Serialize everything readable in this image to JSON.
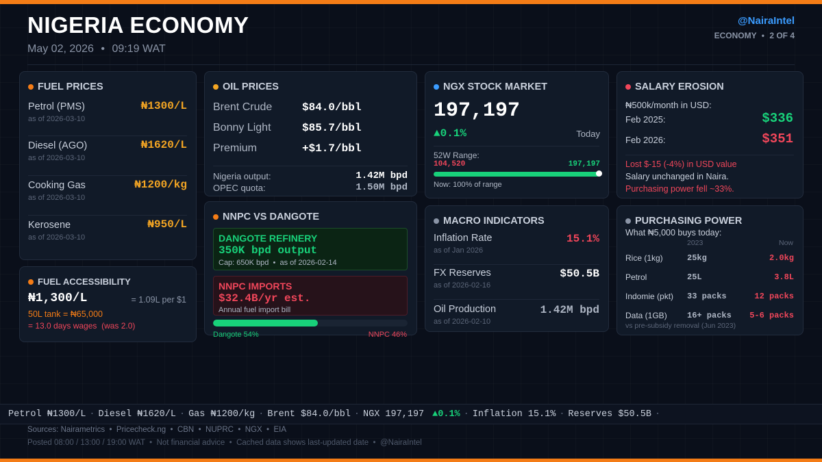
{
  "header": {
    "title": "NIGERIA ECONOMY",
    "date": "May 02, 2026",
    "time": "09:19 WAT",
    "datetime_sep": "•",
    "handle": "@NairaIntel",
    "section": "ECONOMY",
    "page": "2 OF 4"
  },
  "colors": {
    "accent_orange": "#f47c16",
    "amber": "#f5a623",
    "green": "#18d17a",
    "red": "#f0465a",
    "blue": "#3b9cff",
    "grey": "#8a94a6"
  },
  "fuel_prices": {
    "title": "FUEL PRICES",
    "items": [
      {
        "name": "Petrol (PMS)",
        "price": "₦1300/L",
        "asof": "as of 2026-03-10"
      },
      {
        "name": "Diesel (AGO)",
        "price": "₦1620/L",
        "asof": "as of 2026-03-10"
      },
      {
        "name": "Cooking Gas",
        "price": "₦1200/kg",
        "asof": "as of 2026-03-10"
      },
      {
        "name": "Kerosene",
        "price": "₦950/L",
        "asof": "as of 2026-03-10"
      }
    ]
  },
  "fuel_accessibility": {
    "title": "FUEL ACCESSIBILITY",
    "price": "₦1,300/L",
    "per_dollar": "= 1.09L per $1",
    "tank": "50L tank = ₦65,000",
    "days": "= 13.0 days wages  (was 2.0)"
  },
  "oil_prices": {
    "title": "OIL PRICES",
    "items": [
      {
        "name": "Brent Crude",
        "value": "$84.0/bbl"
      },
      {
        "name": "Bonny Light",
        "value": "$85.7/bbl"
      },
      {
        "name": "Premium",
        "value": "+$1.7/bbl"
      }
    ],
    "output_label": "Nigeria output:",
    "output_value": "1.42M bpd",
    "quota_label": "OPEC quota:",
    "quota_value": "1.50M bpd"
  },
  "nnpc_vs_dangote": {
    "title": "NNPC VS DANGOTE",
    "dangote": {
      "heading": "DANGOTE REFINERY",
      "value": "350K bpd output",
      "note": "Cap: 650K bpd  •  as of 2026-02-14"
    },
    "nnpc": {
      "heading": "NNPC IMPORTS",
      "value": "$32.4B/yr est.",
      "note": "Annual fuel import bill"
    },
    "dangote_share_pct": 54,
    "dangote_label": "Dangote 54%",
    "nnpc_label": "NNPC 46%"
  },
  "ngx": {
    "title": "NGX STOCK MARKET",
    "value": "197,197",
    "change": "▲0.1%",
    "period": "Today",
    "range_label": "52W Range:",
    "low": "104,520",
    "high": "197,197",
    "range_pct": 100,
    "position_text": "Now: 100% of range"
  },
  "macro": {
    "title": "MACRO INDICATORS",
    "items": [
      {
        "name": "Inflation Rate",
        "asof": "as of Jan 2026",
        "value": "15.1%",
        "color": "#f0465a"
      },
      {
        "name": "FX Reserves",
        "asof": "as of 2026-02-16",
        "value": "$50.5B",
        "color": "#ffffff"
      },
      {
        "name": "Oil Production",
        "asof": "as of 2026-02-10",
        "value": "1.42M bpd",
        "color": "#aeb6c4"
      }
    ]
  },
  "salary": {
    "title": "SALARY EROSION",
    "subtitle": "₦500k/month in USD:",
    "row1_label": "Feb 2025:",
    "row1_value": "$336",
    "row2_label": "Feb 2026:",
    "row2_value": "$351",
    "note1": "Lost $-15 (-4%) in USD value",
    "note2": "Salary unchanged in Naira.",
    "note3": "Purchasing power fell ~33%."
  },
  "purchasing_power": {
    "title": "PURCHASING POWER",
    "subtitle": "What ₦5,000 buys today:",
    "col_then": "2023",
    "col_now": "Now",
    "rows": [
      {
        "item": "Rice (1kg)",
        "then": "25kg",
        "now": "2.0kg"
      },
      {
        "item": "Petrol",
        "then": "25L",
        "now": "3.8L"
      },
      {
        "item": "Indomie (pkt)",
        "then": "33 packs",
        "now": "12 packs"
      },
      {
        "item": "Data (1GB)",
        "then": "16+ packs",
        "now": "5-6 packs"
      }
    ],
    "footnote": "vs pre-subsidy removal (Jun 2023)"
  },
  "ticker": {
    "items": [
      "Petrol ₦1300/L",
      "Diesel ₦1620/L",
      "Gas ₦1200/kg",
      "Brent $84.0/bbl",
      "NGX 197,197"
    ],
    "ngx_change": "▲0.1%",
    "items2": [
      "Inflation 15.1%",
      "Reserves $50.5B"
    ],
    "sep": "·"
  },
  "footer": {
    "sources": "Sources: Nairametrics  •  Pricecheck.ng  •  CBN  •  NUPRC  •  NGX  •  EIA",
    "posted": "Posted 08:00 / 13:00 / 19:00 WAT  •  Not financial advice  •  Cached data shows last-updated date  •  @NairaIntel"
  }
}
